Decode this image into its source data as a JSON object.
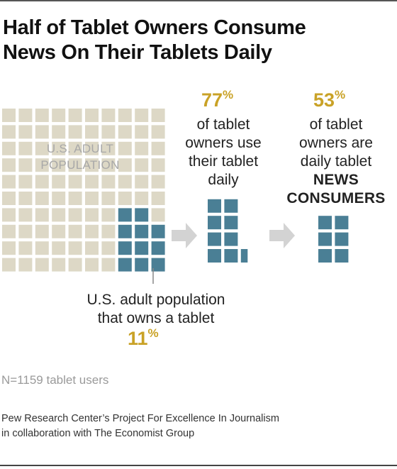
{
  "title_lines": [
    "Half of Tablet Owners Consume",
    "News On Their Tablets Daily"
  ],
  "colors": {
    "population_square": "#ddd8c6",
    "tablet_square": "#4a7f95",
    "arrow": "#d3d3d3",
    "accent": "#c9a227"
  },
  "chart_data": {
    "type": "waffle",
    "population_label": [
      "U.S. ADULT",
      "POPULATION"
    ],
    "population_grid": {
      "rows": 10,
      "cols": 10
    },
    "steps": [
      {
        "value": 11,
        "unit": "%",
        "label_lines": [
          "U.S. adult population",
          "that owns a tablet"
        ],
        "squares": 11
      },
      {
        "value": 77,
        "unit": "%",
        "label_lines": [
          "of tablet",
          "owners use",
          "their tablet",
          "daily"
        ],
        "squares": 8.5
      },
      {
        "value": 53,
        "unit": "%",
        "label_lines": [
          "of tablet",
          "owners are",
          "daily tablet"
        ],
        "label_bold_lines": [
          "NEWS",
          "CONSUMERS"
        ],
        "squares": 6
      }
    ]
  },
  "note": "N=1159 tablet users",
  "source_lines": [
    "Pew Research Center’s Project For Excellence In Journalism",
    "in collaboration with The Economist Group"
  ]
}
